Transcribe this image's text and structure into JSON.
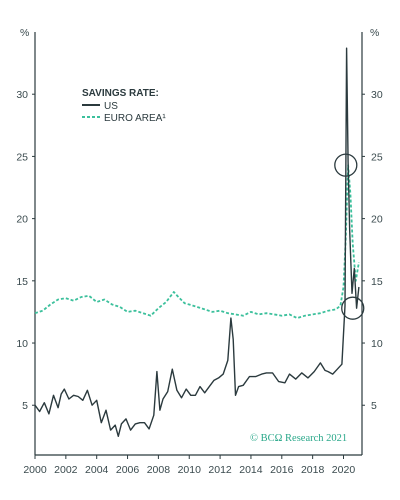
{
  "chart_data": {
    "type": "line",
    "y_unit_left": "%",
    "y_unit_right": "%",
    "ylim": [
      1,
      35
    ],
    "xlim": [
      2000,
      2021.2
    ],
    "y_ticks": [
      5,
      10,
      15,
      20,
      25,
      30
    ],
    "x_ticks": [
      "2000",
      "2002",
      "2004",
      "2006",
      "2008",
      "2010",
      "2012",
      "2014",
      "2016",
      "2018",
      "2020"
    ],
    "legend_title": "SAVINGS RATE:",
    "legend_position": "top-left",
    "grid": false,
    "credit": "© BCΩ Research 2021",
    "colors": {
      "us": "#2b3a3e",
      "euro": "#3cc09c",
      "axis": "#2b3a3e"
    },
    "series": [
      {
        "name": "US",
        "style": "solid",
        "x": [
          2000.0,
          2000.3,
          2000.6,
          2000.9,
          2001.2,
          2001.5,
          2001.7,
          2001.9,
          2002.2,
          2002.5,
          2002.8,
          2003.1,
          2003.4,
          2003.7,
          2004.0,
          2004.3,
          2004.6,
          2004.9,
          2005.2,
          2005.4,
          2005.6,
          2005.9,
          2006.2,
          2006.5,
          2006.8,
          2007.1,
          2007.4,
          2007.7,
          2007.9,
          2008.1,
          2008.3,
          2008.6,
          2008.9,
          2009.2,
          2009.5,
          2009.8,
          2010.1,
          2010.4,
          2010.7,
          2011.0,
          2011.3,
          2011.6,
          2011.9,
          2012.2,
          2012.5,
          2012.7,
          2012.85,
          2013.0,
          2013.2,
          2013.5,
          2013.9,
          2014.3,
          2014.7,
          2015.0,
          2015.4,
          2015.8,
          2016.2,
          2016.5,
          2016.9,
          2017.3,
          2017.7,
          2018.1,
          2018.5,
          2018.8,
          2019.0,
          2019.3,
          2019.6,
          2019.9,
          2020.1,
          2020.2,
          2020.3,
          2020.4,
          2020.55,
          2020.7,
          2020.85,
          2021.0
        ],
        "y": [
          5.0,
          4.5,
          5.2,
          4.3,
          5.8,
          4.8,
          5.9,
          6.3,
          5.5,
          5.8,
          5.7,
          5.4,
          6.2,
          5.0,
          5.4,
          3.6,
          4.6,
          3.0,
          3.4,
          2.5,
          3.5,
          3.9,
          3.0,
          3.5,
          3.6,
          3.6,
          3.1,
          4.2,
          7.7,
          4.6,
          5.5,
          6.1,
          7.9,
          6.2,
          5.6,
          6.3,
          5.8,
          5.8,
          6.5,
          6.0,
          6.5,
          7.0,
          7.2,
          7.5,
          8.6,
          12.0,
          10.3,
          5.8,
          6.5,
          6.6,
          7.3,
          7.3,
          7.5,
          7.6,
          7.6,
          6.9,
          6.8,
          7.5,
          7.1,
          7.6,
          7.2,
          7.7,
          8.4,
          7.8,
          7.7,
          7.5,
          7.9,
          8.3,
          13.0,
          33.7,
          24.5,
          19.0,
          14.0,
          16.0,
          12.8,
          14.5
        ]
      },
      {
        "name": "EURO AREA¹",
        "style": "dashed",
        "x": [
          2000.0,
          2000.5,
          2001.0,
          2001.5,
          2002.0,
          2002.5,
          2003.0,
          2003.5,
          2004.0,
          2004.5,
          2005.0,
          2005.5,
          2006.0,
          2006.5,
          2007.0,
          2007.5,
          2008.0,
          2008.5,
          2009.0,
          2009.3,
          2009.7,
          2010.0,
          2010.5,
          2011.0,
          2011.5,
          2012.0,
          2012.5,
          2013.0,
          2013.5,
          2014.0,
          2014.5,
          2015.0,
          2015.5,
          2016.0,
          2016.5,
          2017.0,
          2017.5,
          2018.0,
          2018.5,
          2019.0,
          2019.5,
          2019.8,
          2020.0,
          2020.15,
          2020.3,
          2020.45,
          2020.6,
          2020.8,
          2021.0
        ],
        "y": [
          12.4,
          12.6,
          13.1,
          13.5,
          13.6,
          13.4,
          13.7,
          13.8,
          13.3,
          13.5,
          13.1,
          12.9,
          12.5,
          12.6,
          12.4,
          12.2,
          12.8,
          13.3,
          14.1,
          13.7,
          13.2,
          13.1,
          12.9,
          12.7,
          12.5,
          12.6,
          12.4,
          12.3,
          12.2,
          12.5,
          12.3,
          12.4,
          12.3,
          12.2,
          12.3,
          12.0,
          12.2,
          12.3,
          12.4,
          12.6,
          12.7,
          13.0,
          14.5,
          18.5,
          24.3,
          22.0,
          18.0,
          15.0,
          16.5
        ]
      }
    ],
    "annotations": [
      {
        "type": "circle",
        "x": 2020.15,
        "y": 24.3
      },
      {
        "type": "circle",
        "x": 2020.6,
        "y": 12.8
      }
    ]
  }
}
